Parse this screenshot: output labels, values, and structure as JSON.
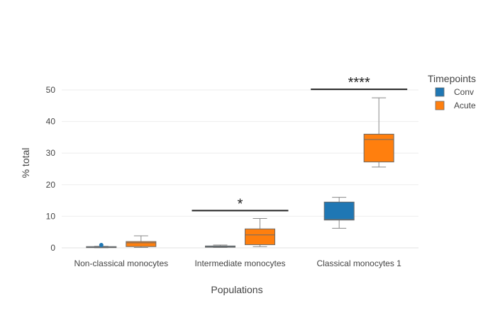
{
  "chart_data": {
    "type": "box",
    "categories": [
      "Non-classical monocytes",
      "Intermediate monocytes",
      "Classical monocytes 1"
    ],
    "xlabel": "Populations",
    "ylabel": "% total",
    "ylim": [
      -1.5,
      52
    ],
    "yticks": [
      0,
      10,
      20,
      30,
      40,
      50
    ],
    "grid": true,
    "legend": {
      "title": "Timepoints",
      "position": "top-right"
    },
    "series": [
      {
        "name": "Conv",
        "color": "#1f77b4",
        "boxes": [
          {
            "min": 0.0,
            "q1": 0.1,
            "median": 0.2,
            "q3": 0.4,
            "max": 0.5,
            "outliers": [
              0.9
            ]
          },
          {
            "min": 0.1,
            "q1": 0.2,
            "median": 0.4,
            "q3": 0.6,
            "max": 0.9,
            "outliers": []
          },
          {
            "min": 6.2,
            "q1": 8.8,
            "median": 9.0,
            "q3": 14.5,
            "max": 16.0,
            "outliers": []
          }
        ]
      },
      {
        "name": "Acute",
        "color": "#ff7f0e",
        "boxes": [
          {
            "min": 0.1,
            "q1": 0.4,
            "median": 1.6,
            "q3": 2.0,
            "max": 3.8,
            "outliers": []
          },
          {
            "min": 0.4,
            "q1": 1.0,
            "median": 4.1,
            "q3": 6.0,
            "max": 9.3,
            "outliers": []
          },
          {
            "min": 25.6,
            "q1": 27.2,
            "median": 34.3,
            "q3": 36.0,
            "max": 47.5,
            "outliers": []
          }
        ]
      }
    ],
    "annotations": [
      {
        "text": "*",
        "category": "Intermediate monocytes",
        "y": 11.8
      },
      {
        "text": "****",
        "category": "Classical monocytes 1",
        "y": 50.2
      }
    ]
  }
}
